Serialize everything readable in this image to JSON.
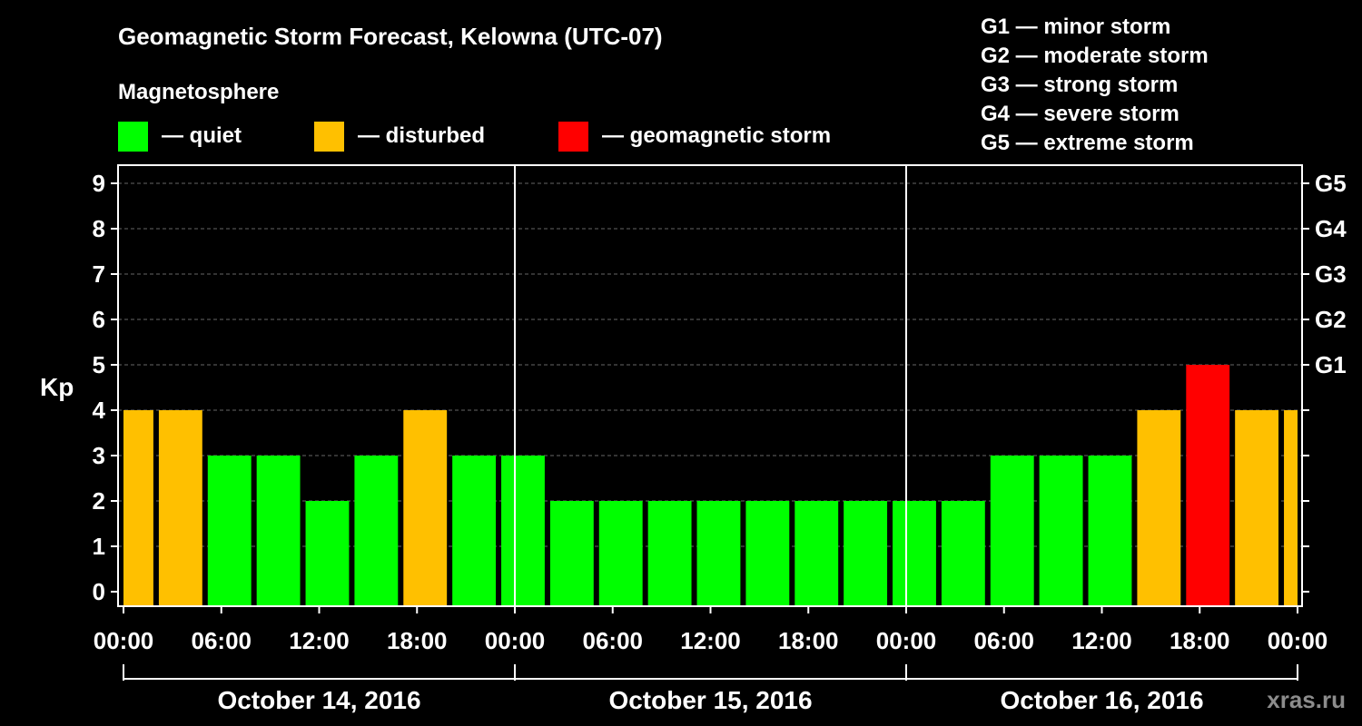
{
  "chart_data": {
    "type": "bar",
    "title": "Geomagnetic Storm Forecast, Kelowna (UTC-07)",
    "legend_title": "Magnetosphere",
    "legend": [
      {
        "label": "— quiet",
        "color": "#00ff00"
      },
      {
        "label": "— disturbed",
        "color": "#ffc000"
      },
      {
        "label": "— geomagnetic storm",
        "color": "#ff0000"
      }
    ],
    "storm_scale": [
      "G1 — minor storm",
      "G2 — moderate storm",
      "G3 — strong storm",
      "G4 — severe storm",
      "G5 — extreme storm"
    ],
    "ylabel": "Kp",
    "ylim": [
      0,
      9
    ],
    "yticks": [
      "0",
      "1",
      "2",
      "3",
      "4",
      "5",
      "6",
      "7",
      "8",
      "9"
    ],
    "right_ticks": [
      {
        "kp": 5,
        "label": "G1"
      },
      {
        "kp": 6,
        "label": "G2"
      },
      {
        "kp": 7,
        "label": "G3"
      },
      {
        "kp": 8,
        "label": "G4"
      },
      {
        "kp": 9,
        "label": "G5"
      }
    ],
    "xlim_hours": [
      0,
      72
    ],
    "xticks": [
      {
        "hour": 0,
        "label": "00:00"
      },
      {
        "hour": 6,
        "label": "06:00"
      },
      {
        "hour": 12,
        "label": "12:00"
      },
      {
        "hour": 18,
        "label": "18:00"
      },
      {
        "hour": 24,
        "label": "00:00"
      },
      {
        "hour": 30,
        "label": "06:00"
      },
      {
        "hour": 36,
        "label": "12:00"
      },
      {
        "hour": 42,
        "label": "18:00"
      },
      {
        "hour": 48,
        "label": "00:00"
      },
      {
        "hour": 54,
        "label": "06:00"
      },
      {
        "hour": 60,
        "label": "12:00"
      },
      {
        "hour": 66,
        "label": "18:00"
      },
      {
        "hour": 72,
        "label": "00:00"
      }
    ],
    "dates": [
      {
        "label": "October 14, 2016",
        "start_hour": 0,
        "end_hour": 24
      },
      {
        "label": "October 15, 2016",
        "start_hour": 24,
        "end_hour": 48
      },
      {
        "label": "October 16, 2016",
        "start_hour": 48,
        "end_hour": 72
      }
    ],
    "bars": [
      {
        "start_hour": 0,
        "end_hour": 2,
        "kp": 4,
        "level": "disturbed"
      },
      {
        "start_hour": 2,
        "end_hour": 5,
        "kp": 4,
        "level": "disturbed"
      },
      {
        "start_hour": 5,
        "end_hour": 8,
        "kp": 3,
        "level": "quiet"
      },
      {
        "start_hour": 8,
        "end_hour": 11,
        "kp": 3,
        "level": "quiet"
      },
      {
        "start_hour": 11,
        "end_hour": 14,
        "kp": 2,
        "level": "quiet"
      },
      {
        "start_hour": 14,
        "end_hour": 17,
        "kp": 3,
        "level": "quiet"
      },
      {
        "start_hour": 17,
        "end_hour": 20,
        "kp": 4,
        "level": "disturbed"
      },
      {
        "start_hour": 20,
        "end_hour": 23,
        "kp": 3,
        "level": "quiet"
      },
      {
        "start_hour": 23,
        "end_hour": 26,
        "kp": 3,
        "level": "quiet"
      },
      {
        "start_hour": 26,
        "end_hour": 29,
        "kp": 2,
        "level": "quiet"
      },
      {
        "start_hour": 29,
        "end_hour": 32,
        "kp": 2,
        "level": "quiet"
      },
      {
        "start_hour": 32,
        "end_hour": 35,
        "kp": 2,
        "level": "quiet"
      },
      {
        "start_hour": 35,
        "end_hour": 38,
        "kp": 2,
        "level": "quiet"
      },
      {
        "start_hour": 38,
        "end_hour": 41,
        "kp": 2,
        "level": "quiet"
      },
      {
        "start_hour": 41,
        "end_hour": 44,
        "kp": 2,
        "level": "quiet"
      },
      {
        "start_hour": 44,
        "end_hour": 47,
        "kp": 2,
        "level": "quiet"
      },
      {
        "start_hour": 47,
        "end_hour": 50,
        "kp": 2,
        "level": "quiet"
      },
      {
        "start_hour": 50,
        "end_hour": 53,
        "kp": 2,
        "level": "quiet"
      },
      {
        "start_hour": 53,
        "end_hour": 56,
        "kp": 3,
        "level": "quiet"
      },
      {
        "start_hour": 56,
        "end_hour": 59,
        "kp": 3,
        "level": "quiet"
      },
      {
        "start_hour": 59,
        "end_hour": 62,
        "kp": 3,
        "level": "quiet"
      },
      {
        "start_hour": 62,
        "end_hour": 65,
        "kp": 4,
        "level": "disturbed"
      },
      {
        "start_hour": 65,
        "end_hour": 68,
        "kp": 5,
        "level": "storm"
      },
      {
        "start_hour": 68,
        "end_hour": 71,
        "kp": 4,
        "level": "disturbed"
      },
      {
        "start_hour": 71,
        "end_hour": 72,
        "kp": 4,
        "level": "disturbed"
      }
    ],
    "colors": {
      "quiet": "#00ff00",
      "disturbed": "#ffc000",
      "storm": "#ff0000"
    },
    "grid": true,
    "legend_position": "top"
  },
  "watermark": "xras.ru"
}
